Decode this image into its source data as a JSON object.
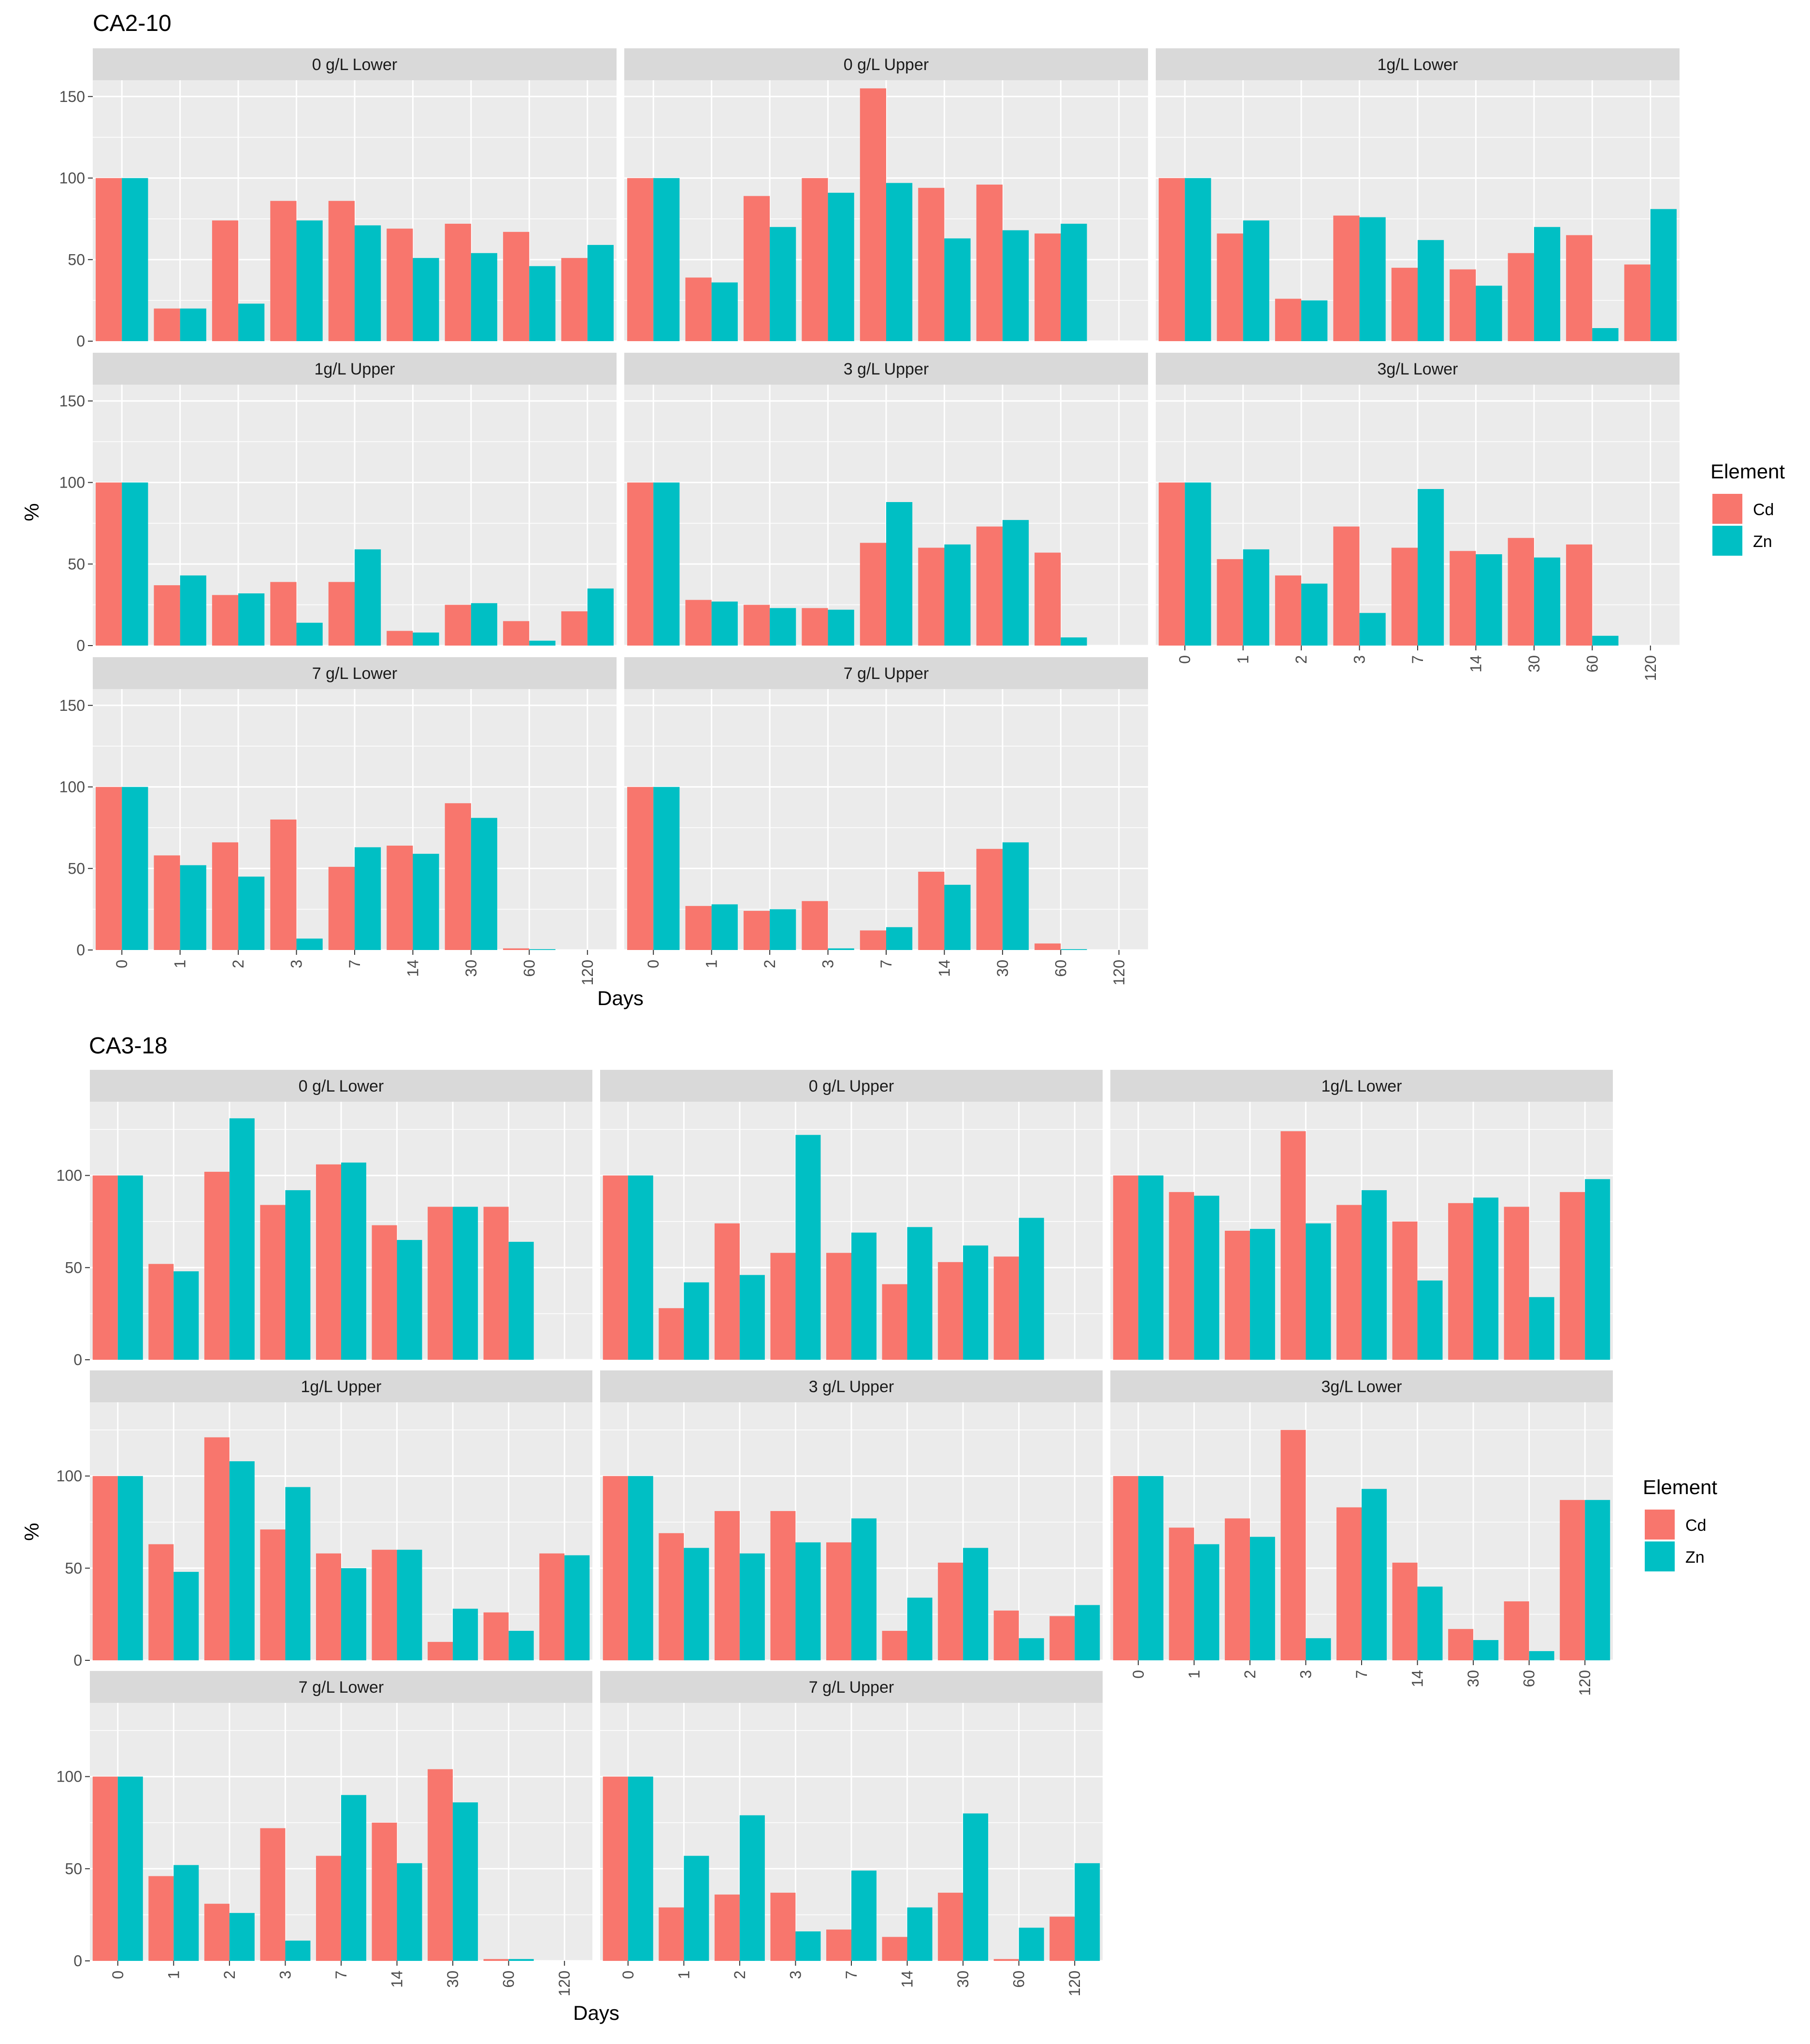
{
  "colors": {
    "Cd": "#F8766D",
    "Zn": "#00BFC4",
    "panel_bg": "#EBEBEB",
    "strip_bg": "#D9D9D9",
    "grid": "#FFFFFF"
  },
  "chart_data": [
    {
      "type": "bar",
      "title": "CA2-10",
      "xlabel": "Days",
      "ylabel": "%",
      "categories": [
        "0",
        "1",
        "2",
        "3",
        "7",
        "14",
        "30",
        "60",
        "120"
      ],
      "ylim": [
        0,
        160
      ],
      "yticks": [
        0,
        50,
        100,
        150
      ],
      "legend": {
        "title": "Element",
        "items": [
          "Cd",
          "Zn"
        ]
      },
      "panels": [
        {
          "name": "0 g/L Lower",
          "series": [
            {
              "name": "Cd",
              "values": [
                100,
                20,
                74,
                86,
                86,
                69,
                72,
                67,
                51
              ]
            },
            {
              "name": "Zn",
              "values": [
                100,
                20,
                23,
                74,
                71,
                51,
                54,
                46,
                59
              ]
            }
          ]
        },
        {
          "name": "0 g/L Upper",
          "series": [
            {
              "name": "Cd",
              "values": [
                100,
                39,
                89,
                100,
                155,
                94,
                96,
                66,
                null
              ]
            },
            {
              "name": "Zn",
              "values": [
                100,
                36,
                70,
                91,
                97,
                63,
                68,
                72,
                null
              ]
            }
          ]
        },
        {
          "name": "1g/L Lower",
          "series": [
            {
              "name": "Cd",
              "values": [
                100,
                66,
                26,
                77,
                45,
                44,
                54,
                65,
                47
              ]
            },
            {
              "name": "Zn",
              "values": [
                100,
                74,
                25,
                76,
                62,
                34,
                70,
                8,
                81
              ]
            }
          ]
        },
        {
          "name": "1g/L Upper",
          "series": [
            {
              "name": "Cd",
              "values": [
                100,
                37,
                31,
                39,
                39,
                9,
                25,
                15,
                21
              ]
            },
            {
              "name": "Zn",
              "values": [
                100,
                43,
                32,
                14,
                59,
                8,
                26,
                3,
                35
              ]
            }
          ]
        },
        {
          "name": "3 g/L Upper",
          "series": [
            {
              "name": "Cd",
              "values": [
                100,
                28,
                25,
                23,
                63,
                60,
                73,
                57,
                null
              ]
            },
            {
              "name": "Zn",
              "values": [
                100,
                27,
                23,
                22,
                88,
                62,
                77,
                5,
                null
              ]
            }
          ]
        },
        {
          "name": "3g/L Lower",
          "series": [
            {
              "name": "Cd",
              "values": [
                100,
                53,
                43,
                73,
                60,
                58,
                66,
                62,
                null
              ]
            },
            {
              "name": "Zn",
              "values": [
                100,
                59,
                38,
                20,
                96,
                56,
                54,
                6,
                null
              ]
            }
          ]
        },
        {
          "name": "7 g/L Lower",
          "series": [
            {
              "name": "Cd",
              "values": [
                100,
                58,
                66,
                80,
                51,
                64,
                90,
                1,
                null
              ]
            },
            {
              "name": "Zn",
              "values": [
                100,
                52,
                45,
                7,
                63,
                59,
                81,
                0.5,
                null
              ]
            }
          ]
        },
        {
          "name": "7 g/L Upper",
          "series": [
            {
              "name": "Cd",
              "values": [
                100,
                27,
                24,
                30,
                12,
                48,
                62,
                4,
                null
              ]
            },
            {
              "name": "Zn",
              "values": [
                100,
                28,
                25,
                1,
                14,
                40,
                66,
                0.5,
                null
              ]
            }
          ]
        }
      ]
    },
    {
      "type": "bar",
      "title": "CA3-18",
      "xlabel": "Days",
      "ylabel": "%",
      "categories": [
        "0",
        "1",
        "2",
        "3",
        "7",
        "14",
        "30",
        "60",
        "120"
      ],
      "ylim": [
        0,
        140
      ],
      "yticks": [
        0,
        50,
        100
      ],
      "legend": {
        "title": "Element",
        "items": [
          "Cd",
          "Zn"
        ]
      },
      "panels": [
        {
          "name": "0 g/L Lower",
          "series": [
            {
              "name": "Cd",
              "values": [
                100,
                52,
                102,
                84,
                106,
                73,
                83,
                83,
                null
              ]
            },
            {
              "name": "Zn",
              "values": [
                100,
                48,
                131,
                92,
                107,
                65,
                83,
                64,
                null
              ]
            }
          ]
        },
        {
          "name": "0 g/L Upper",
          "series": [
            {
              "name": "Cd",
              "values": [
                100,
                28,
                74,
                58,
                58,
                41,
                53,
                56,
                null
              ]
            },
            {
              "name": "Zn",
              "values": [
                100,
                42,
                46,
                122,
                69,
                72,
                62,
                77,
                null
              ]
            }
          ]
        },
        {
          "name": "1g/L Lower",
          "series": [
            {
              "name": "Cd",
              "values": [
                100,
                91,
                70,
                124,
                84,
                75,
                85,
                83,
                91
              ]
            },
            {
              "name": "Zn",
              "values": [
                100,
                89,
                71,
                74,
                92,
                43,
                88,
                34,
                98
              ]
            }
          ]
        },
        {
          "name": "1g/L Upper",
          "series": [
            {
              "name": "Cd",
              "values": [
                100,
                63,
                121,
                71,
                58,
                60,
                10,
                26,
                58
              ]
            },
            {
              "name": "Zn",
              "values": [
                100,
                48,
                108,
                94,
                50,
                60,
                28,
                16,
                57
              ]
            }
          ]
        },
        {
          "name": "3 g/L Upper",
          "series": [
            {
              "name": "Cd",
              "values": [
                100,
                69,
                81,
                81,
                64,
                16,
                53,
                27,
                24
              ]
            },
            {
              "name": "Zn",
              "values": [
                100,
                61,
                58,
                64,
                77,
                34,
                61,
                12,
                30
              ]
            }
          ]
        },
        {
          "name": "3g/L Lower",
          "series": [
            {
              "name": "Cd",
              "values": [
                100,
                72,
                77,
                125,
                83,
                53,
                17,
                32,
                87
              ]
            },
            {
              "name": "Zn",
              "values": [
                100,
                63,
                67,
                12,
                93,
                40,
                11,
                5,
                87
              ]
            }
          ]
        },
        {
          "name": "7 g/L Lower",
          "series": [
            {
              "name": "Cd",
              "values": [
                100,
                46,
                31,
                72,
                57,
                75,
                104,
                1,
                null
              ]
            },
            {
              "name": "Zn",
              "values": [
                100,
                52,
                26,
                11,
                90,
                53,
                86,
                1,
                null
              ]
            }
          ]
        },
        {
          "name": "7 g/L Upper",
          "series": [
            {
              "name": "Cd",
              "values": [
                100,
                29,
                36,
                37,
                17,
                13,
                37,
                1,
                24
              ]
            },
            {
              "name": "Zn",
              "values": [
                100,
                57,
                79,
                16,
                49,
                29,
                80,
                18,
                53
              ]
            }
          ]
        }
      ]
    }
  ]
}
